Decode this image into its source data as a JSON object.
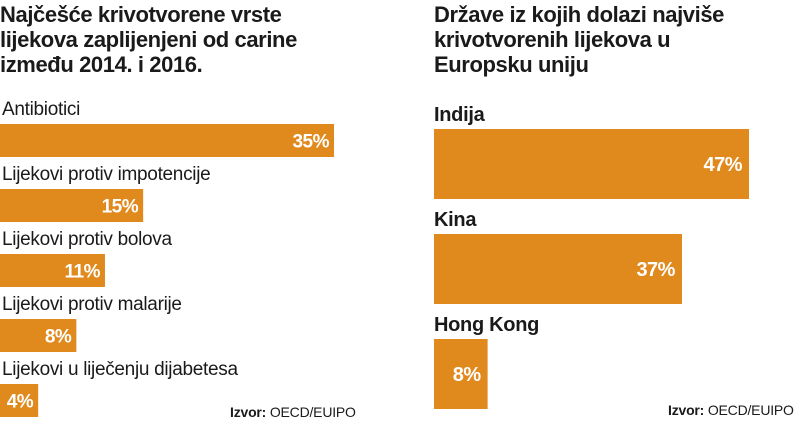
{
  "accent_color": "#e08a1e",
  "chart_data": [
    {
      "type": "bar",
      "orientation": "horizontal",
      "title": "Najčešće krivotvorene vrste lijekova zaplijenjeni od carine između 2014. i 2016.",
      "categories": [
        "Antibiotici",
        "Lijekovi protiv impotencije",
        "Lijekovi protiv bolova",
        "Lijekovi protiv malarije",
        "Lijekovi u liječenju dijabetesa"
      ],
      "values": [
        35,
        15,
        11,
        8,
        4
      ],
      "value_labels": [
        "35%",
        "15%",
        "11%",
        "8%",
        "4%"
      ],
      "unit": "%",
      "xlim": [
        0,
        35
      ],
      "grid": false,
      "source_label": "Izvor:",
      "source_text": "OECD/EUIPO"
    },
    {
      "type": "bar",
      "orientation": "horizontal",
      "title": "Države iz kojih dolazi najviše krivotvorenih lijekova u Europsku uniju",
      "categories": [
        "Indija",
        "Kina",
        "Hong Kong"
      ],
      "values": [
        47,
        37,
        8
      ],
      "value_labels": [
        "47%",
        "37%",
        "8%"
      ],
      "unit": "%",
      "xlim": [
        0,
        47
      ],
      "grid": false,
      "source_label": "Izvor:",
      "source_text": "OECD/EUIPO"
    }
  ]
}
